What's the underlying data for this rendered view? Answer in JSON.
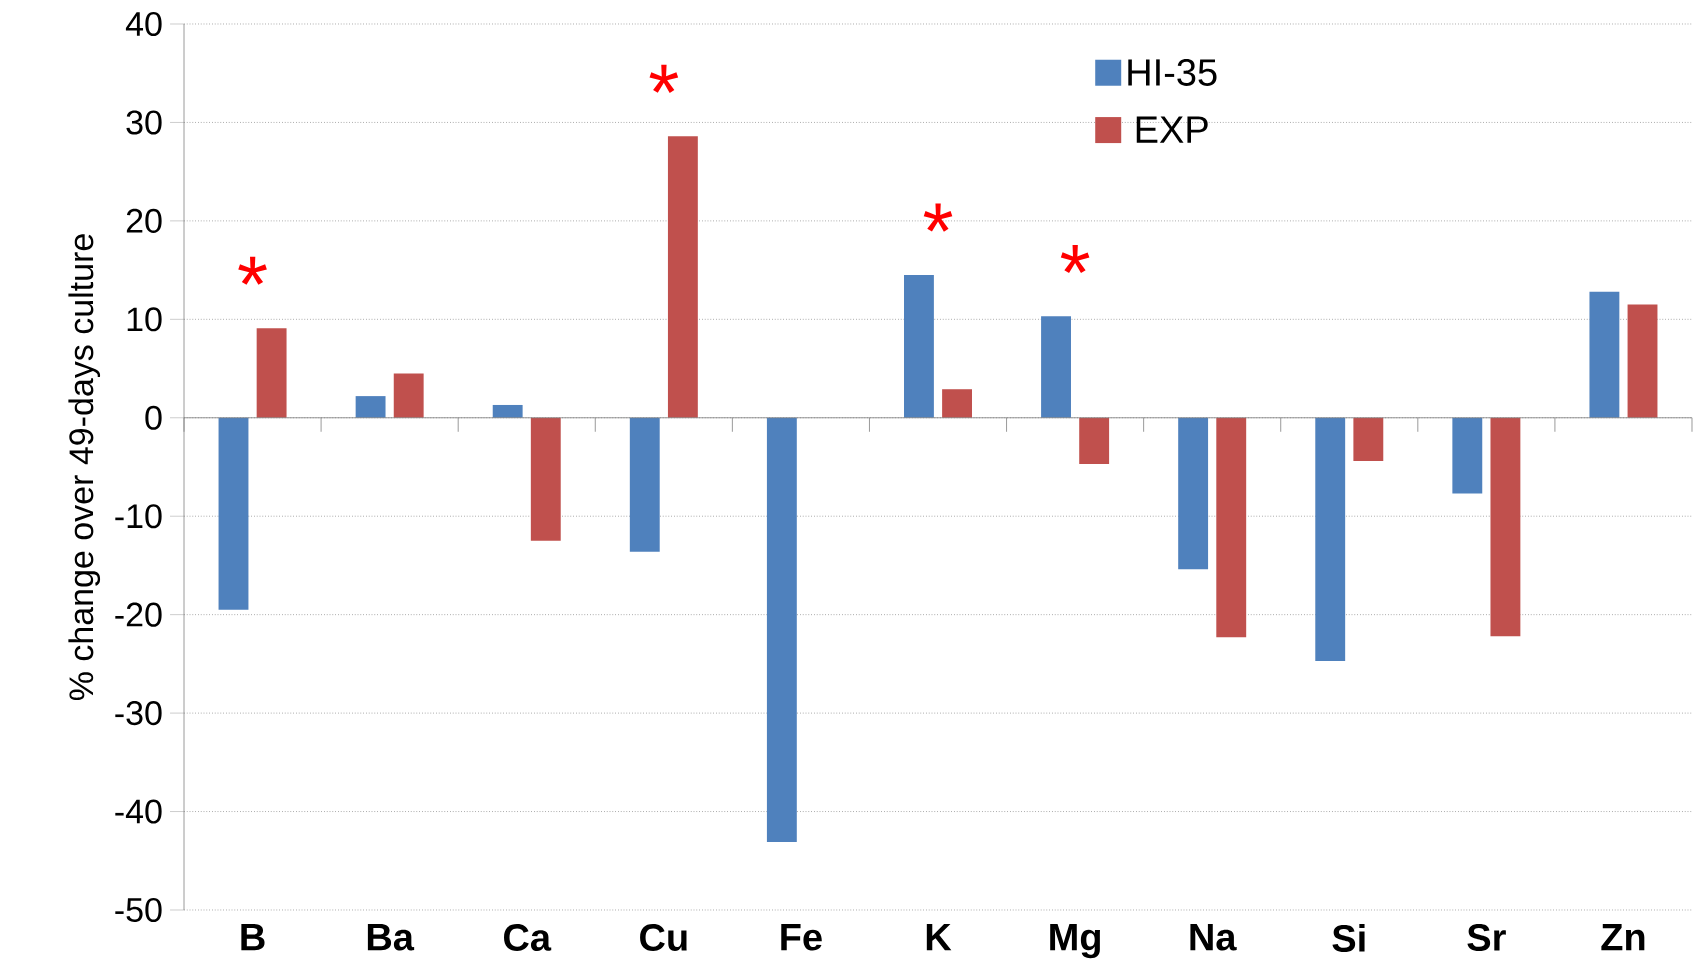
{
  "chart_data": {
    "type": "bar",
    "ylabel": "% change over 49-days culture",
    "categories": [
      "B",
      "Ba",
      "Ca",
      "Cu",
      "Fe",
      "K",
      "Mg",
      "Na",
      "Si",
      "Sr",
      "Zn"
    ],
    "series": [
      {
        "name": "HI-35",
        "color": "#4f81bd",
        "values": [
          -19.5,
          2.2,
          1.3,
          -13.6,
          -43.1,
          14.5,
          10.3,
          -15.4,
          -24.7,
          -7.7,
          12.8
        ]
      },
      {
        "name": "EXP",
        "color": "#c0504d",
        "values": [
          9.1,
          4.5,
          -12.5,
          28.6,
          0,
          2.9,
          -4.7,
          -22.3,
          -4.4,
          -22.2,
          11.5
        ]
      }
    ],
    "ylim": [
      -50,
      40
    ],
    "yticks": [
      -50,
      -40,
      -30,
      -20,
      -10,
      0,
      10,
      20,
      30,
      40
    ],
    "grid": "y",
    "legend": "top right",
    "annotations": [
      {
        "text": "*",
        "x": "B",
        "y": 9.1
      },
      {
        "text": "*",
        "x": "Cu",
        "y": 28.6
      },
      {
        "text": "*",
        "x": "K",
        "y": 14.5
      },
      {
        "text": "*",
        "x": "Mg",
        "y": 10.3
      }
    ]
  }
}
